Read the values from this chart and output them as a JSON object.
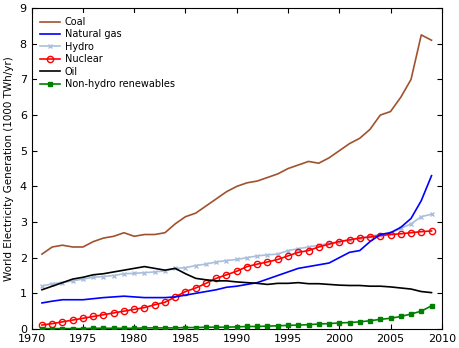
{
  "years": [
    1971,
    1972,
    1973,
    1974,
    1975,
    1976,
    1977,
    1978,
    1979,
    1980,
    1981,
    1982,
    1983,
    1984,
    1985,
    1986,
    1987,
    1988,
    1989,
    1990,
    1991,
    1992,
    1993,
    1994,
    1995,
    1996,
    1997,
    1998,
    1999,
    2000,
    2001,
    2002,
    2003,
    2004,
    2005,
    2006,
    2007,
    2008,
    2009
  ],
  "coal": [
    2.1,
    2.3,
    2.35,
    2.3,
    2.3,
    2.45,
    2.55,
    2.6,
    2.7,
    2.6,
    2.65,
    2.65,
    2.7,
    2.95,
    3.15,
    3.25,
    3.45,
    3.65,
    3.85,
    4.0,
    4.1,
    4.15,
    4.25,
    4.35,
    4.5,
    4.6,
    4.7,
    4.65,
    4.8,
    5.0,
    5.2,
    5.35,
    5.6,
    6.0,
    6.1,
    6.5,
    7.0,
    8.25,
    8.1
  ],
  "natural_gas": [
    0.73,
    0.78,
    0.82,
    0.82,
    0.82,
    0.85,
    0.88,
    0.9,
    0.92,
    0.9,
    0.88,
    0.88,
    0.88,
    0.9,
    0.95,
    1.0,
    1.05,
    1.1,
    1.17,
    1.2,
    1.25,
    1.3,
    1.4,
    1.5,
    1.6,
    1.7,
    1.75,
    1.8,
    1.85,
    2.0,
    2.15,
    2.2,
    2.45,
    2.65,
    2.7,
    2.85,
    3.1,
    3.6,
    4.3
  ],
  "hydro": [
    1.2,
    1.27,
    1.3,
    1.35,
    1.4,
    1.45,
    1.47,
    1.5,
    1.55,
    1.56,
    1.58,
    1.6,
    1.63,
    1.7,
    1.72,
    1.78,
    1.82,
    1.88,
    1.92,
    1.95,
    2.0,
    2.05,
    2.08,
    2.1,
    2.2,
    2.25,
    2.3,
    2.35,
    2.4,
    2.45,
    2.5,
    2.55,
    2.6,
    2.65,
    2.7,
    2.82,
    2.95,
    3.15,
    3.22
  ],
  "nuclear": [
    0.11,
    0.15,
    0.2,
    0.25,
    0.3,
    0.35,
    0.4,
    0.45,
    0.5,
    0.55,
    0.6,
    0.68,
    0.75,
    0.9,
    1.05,
    1.15,
    1.28,
    1.42,
    1.52,
    1.62,
    1.75,
    1.82,
    1.88,
    1.95,
    2.05,
    2.15,
    2.2,
    2.3,
    2.38,
    2.45,
    2.5,
    2.55,
    2.58,
    2.62,
    2.65,
    2.67,
    2.7,
    2.73,
    2.75
  ],
  "oil": [
    1.1,
    1.2,
    1.3,
    1.4,
    1.45,
    1.52,
    1.55,
    1.6,
    1.65,
    1.7,
    1.75,
    1.7,
    1.65,
    1.7,
    1.55,
    1.42,
    1.38,
    1.35,
    1.35,
    1.32,
    1.3,
    1.28,
    1.25,
    1.28,
    1.28,
    1.3,
    1.27,
    1.27,
    1.25,
    1.23,
    1.22,
    1.22,
    1.2,
    1.2,
    1.18,
    1.15,
    1.12,
    1.05,
    1.02
  ],
  "nonhydro": [
    0.01,
    0.01,
    0.01,
    0.01,
    0.01,
    0.02,
    0.02,
    0.02,
    0.02,
    0.02,
    0.03,
    0.03,
    0.03,
    0.03,
    0.04,
    0.04,
    0.05,
    0.05,
    0.05,
    0.06,
    0.07,
    0.07,
    0.08,
    0.09,
    0.1,
    0.11,
    0.12,
    0.14,
    0.15,
    0.17,
    0.18,
    0.2,
    0.23,
    0.27,
    0.3,
    0.35,
    0.42,
    0.5,
    0.65
  ],
  "coal_color": "#A0522D",
  "natural_gas_color": "#0000FF",
  "hydro_color": "#AABFDD",
  "nuclear_color": "#FF0000",
  "oil_color": "#000000",
  "nonhydro_color": "#008000",
  "ylabel": "World Electricity Generation (1000 TWh/yr)",
  "xlim": [
    1970,
    2010
  ],
  "ylim": [
    0,
    9
  ],
  "yticks": [
    0,
    1,
    2,
    3,
    4,
    5,
    6,
    7,
    8,
    9
  ],
  "xticks": [
    1970,
    1975,
    1980,
    1985,
    1990,
    1995,
    2000,
    2005,
    2010
  ],
  "legend_labels": [
    "Coal",
    "Natural gas",
    "Hydro",
    "Nuclear",
    "Oil",
    "Non-hydro renewables"
  ],
  "figwidth": 4.6,
  "figheight": 3.48
}
